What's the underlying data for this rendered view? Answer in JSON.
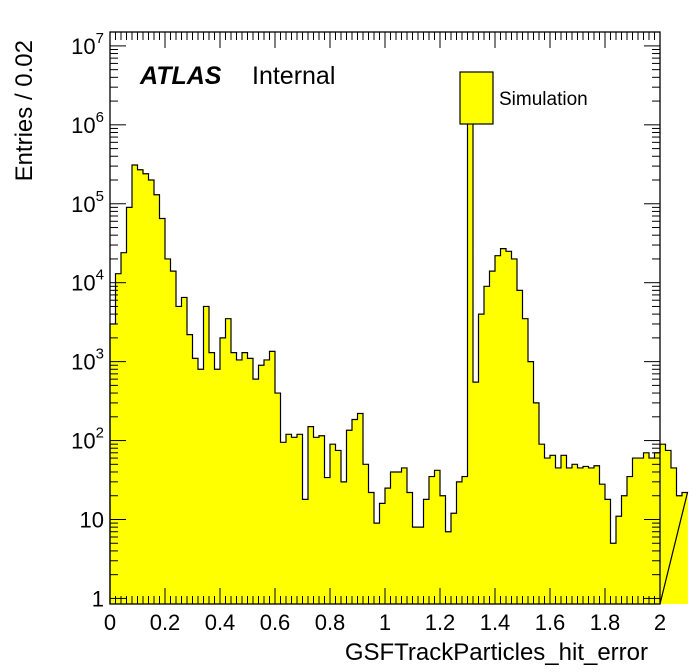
{
  "chart_data": {
    "type": "bar",
    "style": "histogram",
    "xlabel": "GSFTrackParticles_hit_error",
    "ylabel": "Entries / 0.02",
    "xlim": [
      0,
      2
    ],
    "ylim": [
      0.85,
      15000000
    ],
    "yscale": "log",
    "bin_width": 0.02,
    "x_ticks": [
      "0",
      "0.2",
      "0.4",
      "0.6",
      "0.8",
      "1",
      "1.2",
      "1.4",
      "1.6",
      "1.8",
      "2"
    ],
    "y_ticks": [
      {
        "value": 1,
        "base": "1",
        "exp": ""
      },
      {
        "value": 10,
        "base": "10",
        "exp": ""
      },
      {
        "value": 100,
        "base": "10",
        "exp": "2"
      },
      {
        "value": 1000,
        "base": "10",
        "exp": "3"
      },
      {
        "value": 10000,
        "base": "10",
        "exp": "4"
      },
      {
        "value": 100000,
        "base": "10",
        "exp": "5"
      },
      {
        "value": 1000000,
        "base": "10",
        "exp": "6"
      },
      {
        "value": 10000000,
        "base": "10",
        "exp": "7"
      }
    ],
    "fill_color": "#ffff00",
    "line_color": "#000000",
    "legend": {
      "entries": [
        {
          "label": "Simulation",
          "color": "#ffff00"
        }
      ],
      "position": "top-right"
    },
    "annotation": {
      "bold": "ATLAS",
      "text": "Internal"
    },
    "series": [
      {
        "name": "Simulation",
        "values": [
          3000,
          13000,
          24000,
          90000,
          310000,
          270000,
          240000,
          200000,
          130000,
          65000,
          20000,
          14000,
          5000,
          6500,
          2200,
          1100,
          800,
          5000,
          1300,
          800,
          2000,
          3500,
          1300,
          1050,
          1300,
          1100,
          600,
          900,
          1050,
          1350,
          400,
          95,
          120,
          110,
          120,
          18,
          150,
          110,
          115,
          34,
          90,
          75,
          30,
          135,
          185,
          220,
          50,
          22,
          9,
          16,
          25,
          40,
          40,
          45,
          22,
          8,
          8,
          18,
          35,
          42,
          20,
          7,
          12,
          30,
          35,
          1100000,
          550,
          4000,
          9000,
          14000,
          22000,
          27000,
          25000,
          20000,
          8000,
          3500,
          1000,
          300,
          90,
          60,
          65,
          45,
          65,
          45,
          50,
          45,
          47,
          45,
          48,
          28,
          18,
          5,
          11,
          20,
          35,
          60,
          60,
          70,
          60,
          70,
          90,
          75,
          45,
          20,
          22
        ]
      }
    ]
  }
}
